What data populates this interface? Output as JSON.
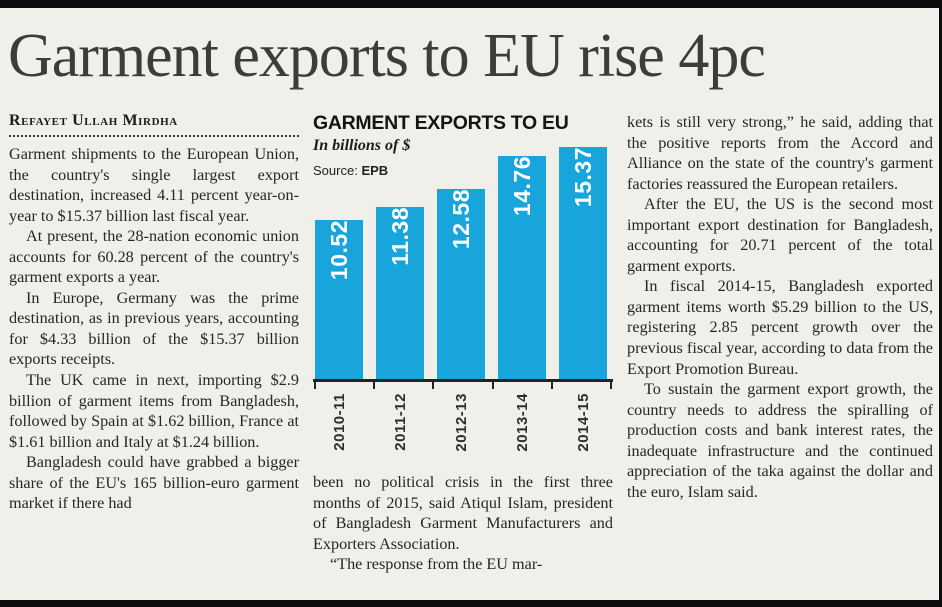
{
  "page": {
    "headline": "Garment exports to EU rise 4pc",
    "byline": "Refayet Ullah Mirdha"
  },
  "columns": {
    "left": {
      "paragraphs": [
        "Garment shipments to the European Union, the country's single largest export destination, increased 4.11 percent year-on-year to $15.37 billion last fiscal year.",
        "At present, the 28-nation economic union accounts for 60.28 percent of the country's garment exports a year.",
        "In Europe, Germany was the prime destination, as in previous years, accounting for $4.33 billion of the $15.37 billion exports receipts.",
        "The UK came in next, importing $2.9 billion of garment items from Bangladesh, followed by Spain at $1.62 billion, France at $1.61 billion and Italy at $1.24 billion.",
        "Bangladesh could have grabbed a bigger share of the EU's 165 billion-euro garment market if there had"
      ]
    },
    "middle": {
      "paragraphs": [
        "been no political crisis in the first three months of 2015, said Atiqul Islam, president of Bangladesh Garment Manufacturers and Exporters Association.",
        "“The response from the EU mar-"
      ]
    },
    "right": {
      "paragraphs": [
        "kets is still very strong,” he said, adding that the positive reports from the Accord and Alliance on the state of the country's garment factories reassured the European retailers.",
        "After the EU, the US is the second most important export destination for Bangladesh, accounting for 20.71 percent of the total garment exports.",
        "In fiscal 2014-15, Bangladesh exported garment items worth $5.29 billion to the US, registering 2.85 percent growth over the previous fiscal year, according to data from the Export Promotion Bureau.",
        "To sustain the garment export growth, the country needs to address the spiralling of production costs and bank interest rates, the inadequate infrastructure and the continued appreciation of the taka against the dollar and the euro, Islam said."
      ]
    }
  },
  "chart": {
    "title": "GARMENT EXPORTS TO EU",
    "subtitle": "In billions of $",
    "source_label": "Source:",
    "source_value": "EPB",
    "bar_color": "#18a5dc"
  },
  "chart_data": {
    "type": "bar",
    "title": "GARMENT EXPORTS TO EU",
    "categories": [
      "2010-11",
      "2011-12",
      "2012-13",
      "2013-14",
      "2014-15"
    ],
    "values": [
      10.52,
      11.38,
      12.58,
      14.76,
      15.37
    ],
    "xlabel": "",
    "ylabel": "In billions of $",
    "ylim": [
      0,
      15.37
    ],
    "source": "EPB",
    "grid": false,
    "legend_position": "none",
    "value_labels": "inside-bars-rotated"
  }
}
